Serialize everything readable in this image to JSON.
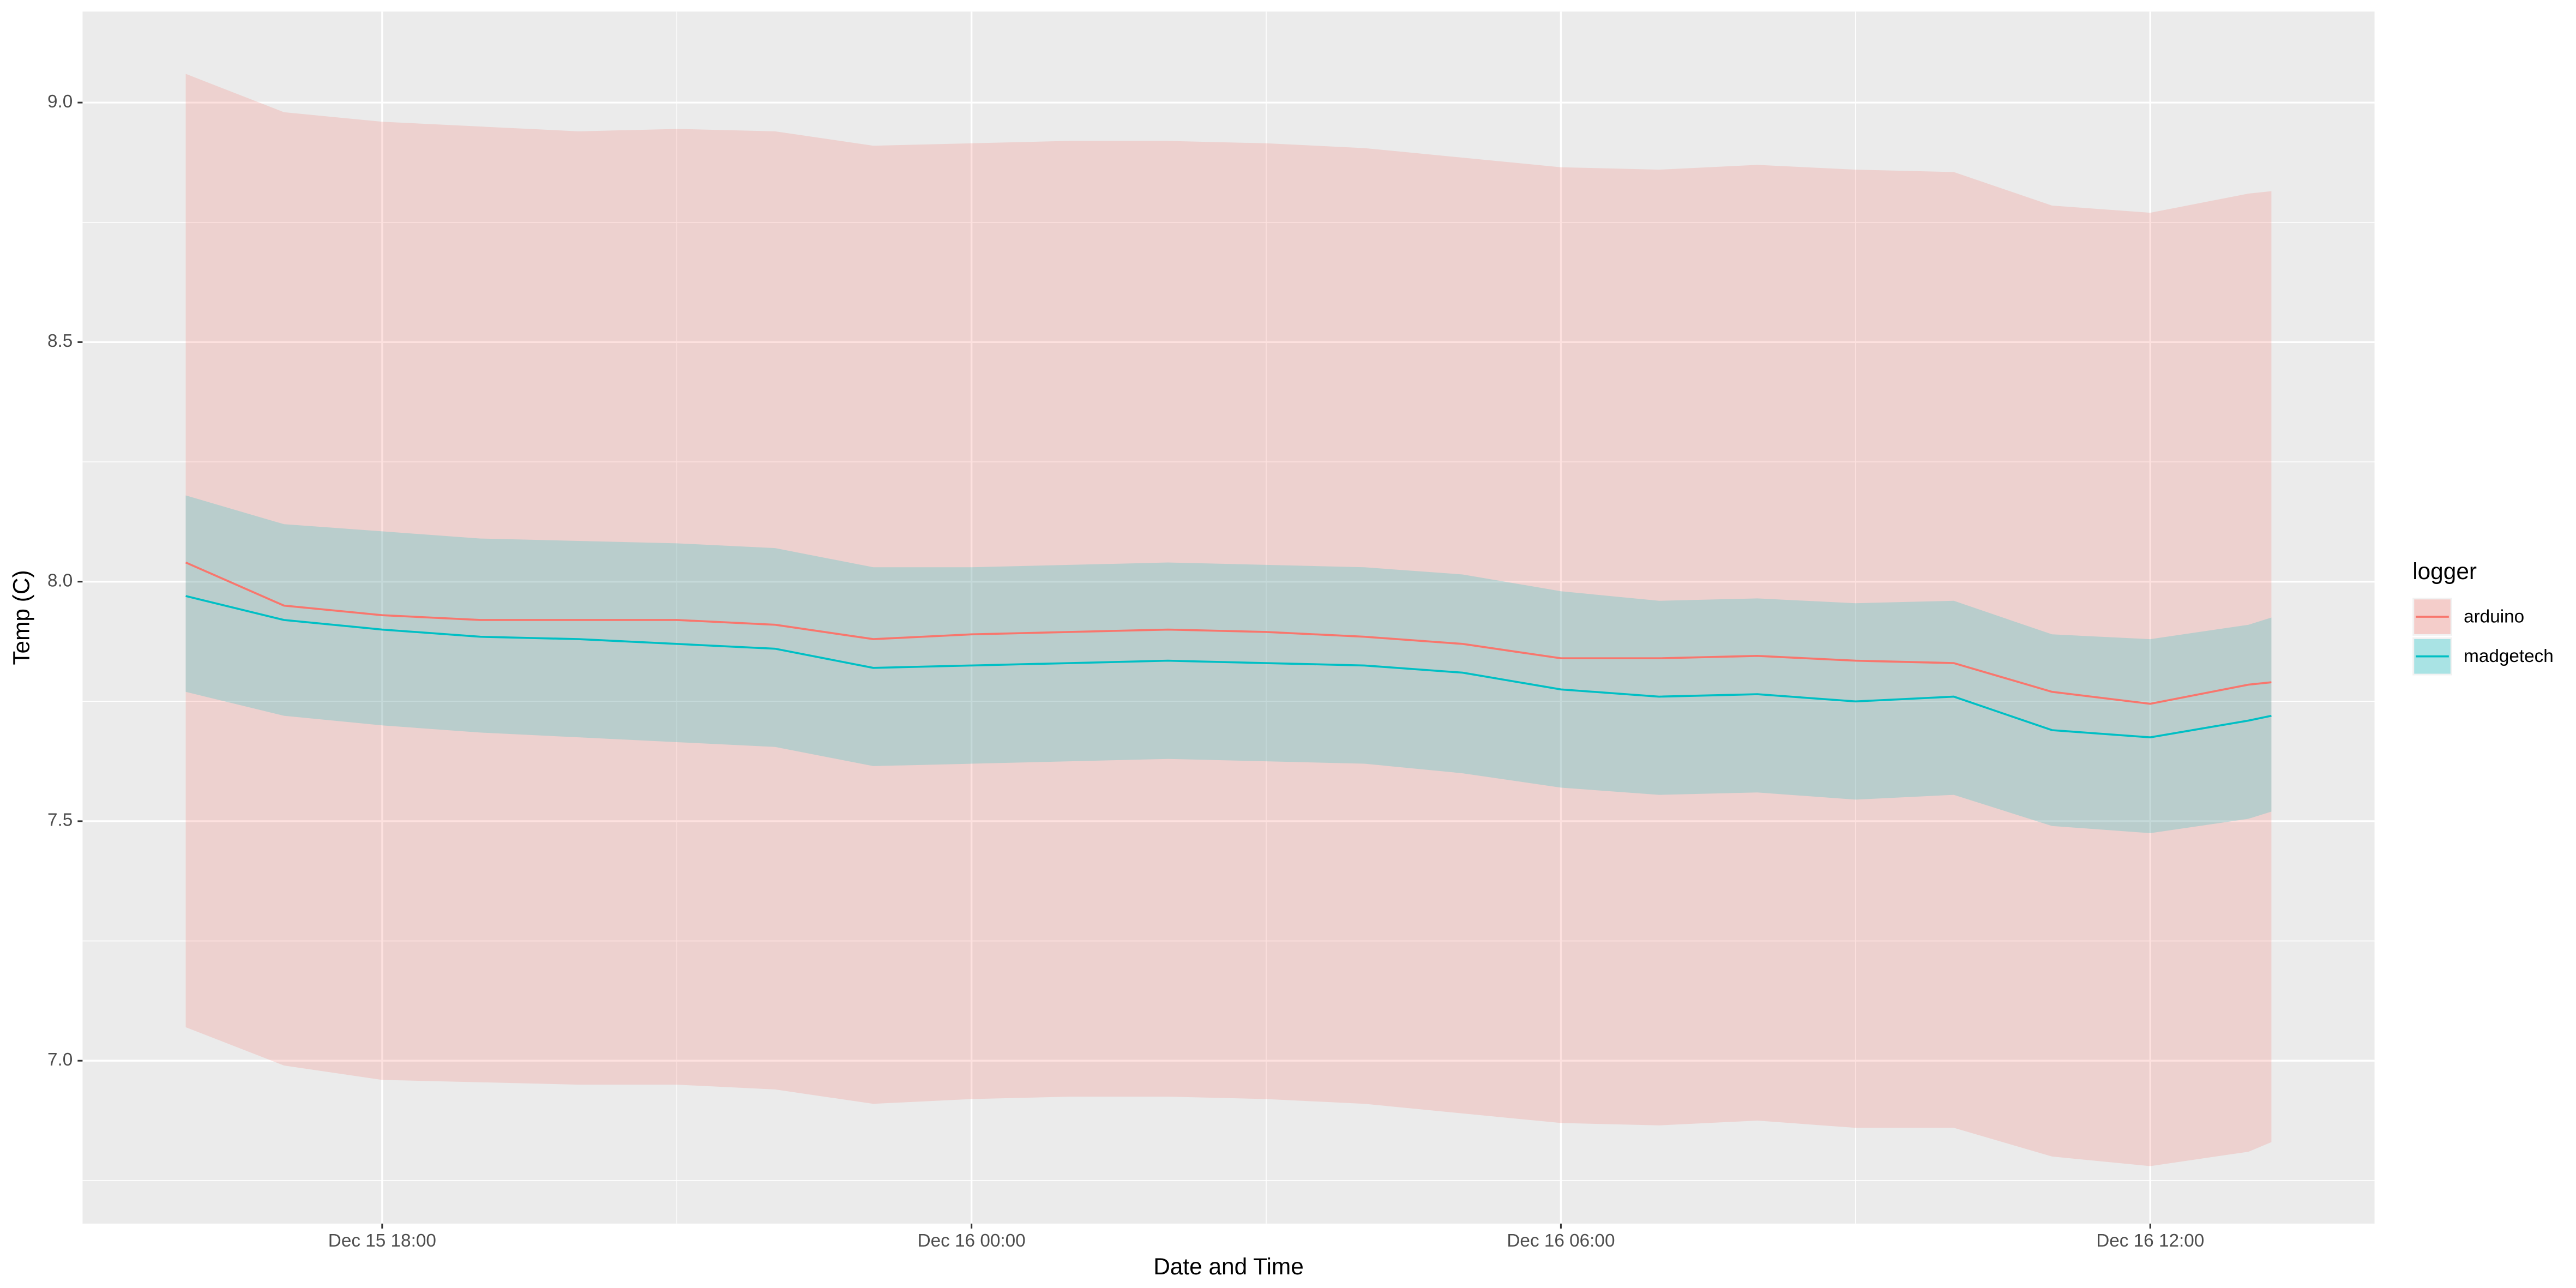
{
  "chart_data": {
    "type": "line",
    "x_label": "Date and Time",
    "y_label": "Temp (C)",
    "legend_title": "logger",
    "legend_position": "right",
    "grid": true,
    "x": [
      "Dec 15 16:00",
      "Dec 15 17:00",
      "Dec 15 18:00",
      "Dec 15 19:00",
      "Dec 15 20:00",
      "Dec 15 21:00",
      "Dec 15 22:00",
      "Dec 15 23:00",
      "Dec 16 00:00",
      "Dec 16 01:00",
      "Dec 16 02:00",
      "Dec 16 03:00",
      "Dec 16 04:00",
      "Dec 16 05:00",
      "Dec 16 06:00",
      "Dec 16 07:00",
      "Dec 16 08:00",
      "Dec 16 09:00",
      "Dec 16 10:00",
      "Dec 16 11:00",
      "Dec 16 12:00",
      "Dec 16 13:00",
      "Dec 16 13:14"
    ],
    "xlim": [
      "Dec 15 14:57",
      "Dec 16 14:17"
    ],
    "xticks": [
      "Dec 15 18:00",
      "Dec 16 00:00",
      "Dec 16 06:00",
      "Dec 16 12:00"
    ],
    "ylim": [
      6.66,
      9.19
    ],
    "yticks": [
      {
        "value": 7,
        "label": "7.0"
      },
      {
        "value": 7.5,
        "label": "7.5"
      },
      {
        "value": 8,
        "label": "8.0"
      },
      {
        "value": 8.5,
        "label": "8.5"
      },
      {
        "value": 9,
        "label": "9.0"
      }
    ],
    "series": [
      {
        "name": "arduino",
        "color": "#F8766D",
        "values": [
          8.04,
          7.95,
          7.93,
          7.92,
          7.92,
          7.92,
          7.91,
          7.88,
          7.89,
          7.895,
          7.9,
          7.895,
          7.885,
          7.87,
          7.84,
          7.84,
          7.845,
          7.835,
          7.83,
          7.77,
          7.745,
          7.785,
          7.79
        ],
        "upper": [
          9.06,
          8.98,
          8.96,
          8.95,
          8.94,
          8.945,
          8.94,
          8.91,
          8.915,
          8.92,
          8.92,
          8.915,
          8.905,
          8.885,
          8.865,
          8.86,
          8.87,
          8.86,
          8.855,
          8.785,
          8.77,
          8.81,
          8.815
        ],
        "lower": [
          7.07,
          6.99,
          6.96,
          6.955,
          6.95,
          6.95,
          6.94,
          6.91,
          6.92,
          6.925,
          6.925,
          6.92,
          6.91,
          6.89,
          6.87,
          6.865,
          6.875,
          6.86,
          6.86,
          6.8,
          6.78,
          6.81,
          6.83
        ]
      },
      {
        "name": "madgetech",
        "color": "#00BFC4",
        "values": [
          7.97,
          7.92,
          7.9,
          7.885,
          7.88,
          7.87,
          7.86,
          7.82,
          7.825,
          7.83,
          7.835,
          7.83,
          7.825,
          7.81,
          7.775,
          7.76,
          7.765,
          7.75,
          7.76,
          7.69,
          7.675,
          7.71,
          7.72
        ],
        "upper": [
          8.18,
          8.12,
          8.105,
          8.09,
          8.085,
          8.08,
          8.07,
          8.03,
          8.03,
          8.035,
          8.04,
          8.035,
          8.03,
          8.015,
          7.98,
          7.96,
          7.965,
          7.955,
          7.96,
          7.89,
          7.88,
          7.91,
          7.925
        ],
        "lower": [
          7.77,
          7.72,
          7.7,
          7.685,
          7.675,
          7.665,
          7.655,
          7.615,
          7.62,
          7.625,
          7.63,
          7.625,
          7.62,
          7.6,
          7.57,
          7.555,
          7.56,
          7.545,
          7.555,
          7.49,
          7.475,
          7.505,
          7.52
        ]
      }
    ]
  }
}
